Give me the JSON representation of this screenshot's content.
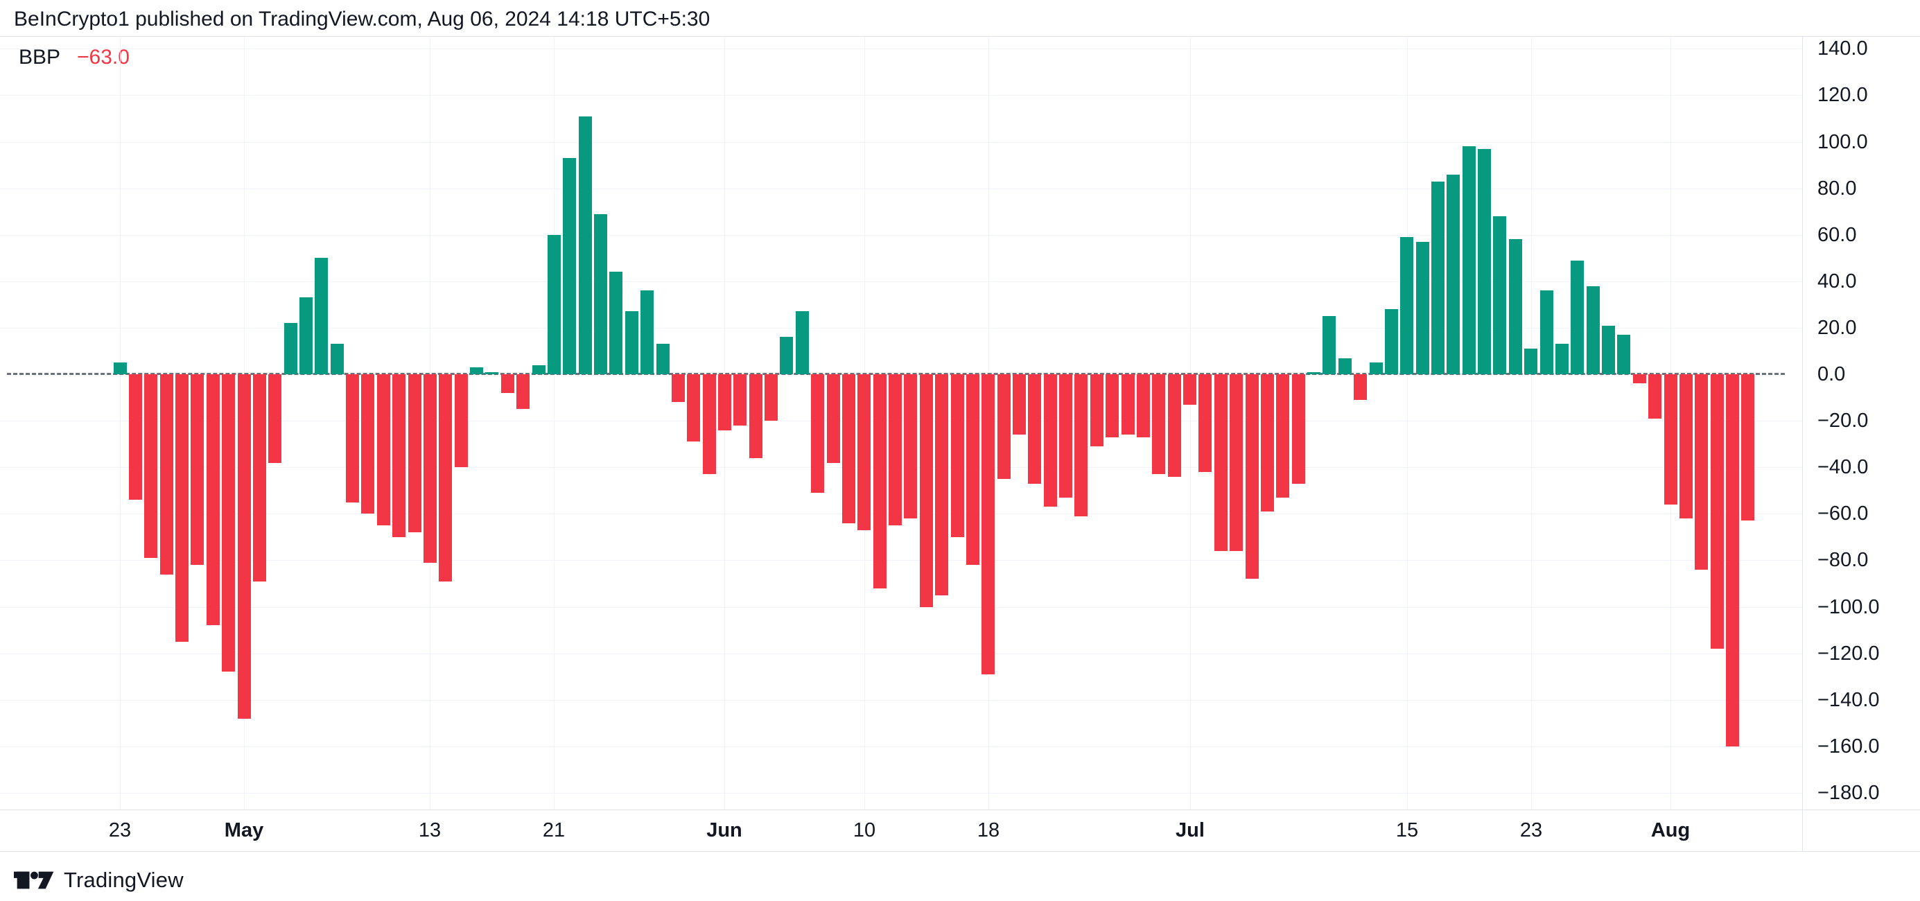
{
  "header": {
    "title": "BeInCrypto1 published on TradingView.com, Aug 06, 2024 14:18 UTC+5:30"
  },
  "legend": {
    "indicator": "BBP",
    "value": "−63.0"
  },
  "footer": {
    "brand": "TradingView"
  },
  "colors": {
    "positive": "#089981",
    "negative": "#f23645",
    "grid": "#f0f3fa",
    "axis_border": "#e0e3eb",
    "zero_line": "#6e717c",
    "text": "#131722",
    "value_color": "#f23645"
  },
  "y_axis": {
    "ticks": [
      {
        "label": "140.0",
        "value": 140
      },
      {
        "label": "120.0",
        "value": 120
      },
      {
        "label": "100.0",
        "value": 100
      },
      {
        "label": "80.0",
        "value": 80
      },
      {
        "label": "60.0",
        "value": 60
      },
      {
        "label": "40.0",
        "value": 40
      },
      {
        "label": "20.0",
        "value": 20
      },
      {
        "label": "0.0",
        "value": 0
      },
      {
        "label": "−20.0",
        "value": -20
      },
      {
        "label": "−40.0",
        "value": -40
      },
      {
        "label": "−60.0",
        "value": -60
      },
      {
        "label": "−80.0",
        "value": -80
      },
      {
        "label": "−100.0",
        "value": -100
      },
      {
        "label": "−120.0",
        "value": -120
      },
      {
        "label": "−140.0",
        "value": -140
      },
      {
        "label": "−160.0",
        "value": -160
      },
      {
        "label": "−180.0",
        "value": -180
      }
    ]
  },
  "x_axis": {
    "ticks": [
      {
        "label": "23",
        "day": 0,
        "style": "day"
      },
      {
        "label": "May",
        "day": 8,
        "style": "month"
      },
      {
        "label": "13",
        "day": 20,
        "style": "day"
      },
      {
        "label": "21",
        "day": 28,
        "style": "day"
      },
      {
        "label": "Jun",
        "day": 39,
        "style": "month"
      },
      {
        "label": "10",
        "day": 48,
        "style": "day"
      },
      {
        "label": "18",
        "day": 56,
        "style": "day"
      },
      {
        "label": "Jul",
        "day": 69,
        "style": "month"
      },
      {
        "label": "15",
        "day": 83,
        "style": "day"
      },
      {
        "label": "23",
        "day": 91,
        "style": "day"
      },
      {
        "label": "Aug",
        "day": 100,
        "style": "month"
      }
    ]
  },
  "chart_data": {
    "type": "bar",
    "title": "BBP (Bull Bear Power) daily histogram",
    "indicator": "BBP",
    "current_value": -63.0,
    "start_date": "2024-04-23",
    "end_date": "2024-08-06",
    "interval": "1D",
    "ylim": [
      -180,
      140
    ],
    "grid": true,
    "values": [
      5,
      -54,
      -79,
      -86,
      -115,
      -82,
      -108,
      -128,
      -148,
      -89,
      -38,
      22,
      33,
      50,
      13,
      -55,
      -60,
      -65,
      -70,
      -68,
      -81,
      -89,
      -40,
      3,
      1,
      -8,
      -15,
      4,
      60,
      93,
      111,
      69,
      44,
      27,
      36,
      13,
      -12,
      -29,
      -43,
      -24,
      -22,
      -36,
      -20,
      16,
      27,
      -51,
      -38,
      -64,
      -67,
      -92,
      -65,
      -62,
      -100,
      -95,
      -70,
      -82,
      -129,
      -45,
      -26,
      -47,
      -57,
      -53,
      -61,
      -31,
      -27,
      -26,
      -27,
      -43,
      -44,
      -13,
      -42,
      -76,
      -76,
      -88,
      -59,
      -53,
      -47,
      1,
      25,
      7,
      -11,
      5,
      28,
      59,
      57,
      83,
      86,
      98,
      97,
      68,
      58,
      11,
      36,
      13,
      49,
      38,
      21,
      17,
      -4,
      -19,
      -56,
      -62,
      -84,
      -118,
      -160,
      -63
    ]
  }
}
